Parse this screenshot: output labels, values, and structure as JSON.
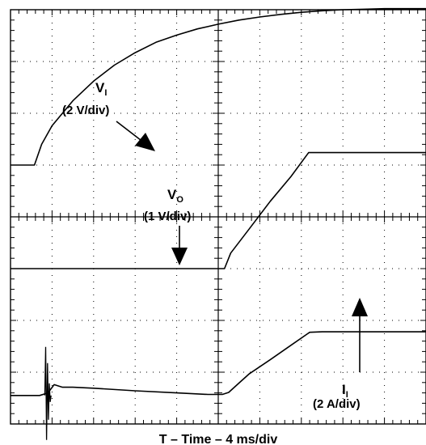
{
  "chart_data": {
    "type": "line",
    "title": "",
    "xlabel": "T – Time – 4 ms/div",
    "x_unit": "ms",
    "x_per_div": 4,
    "divisions": {
      "x": 10,
      "y": 8
    },
    "xlim": [
      0,
      40
    ],
    "grid": true,
    "series": [
      {
        "name": "VI",
        "sub": "I",
        "scale_label": "(2 V/div)",
        "scale_per_div": 2,
        "unit": "V",
        "zero_div": 2.05,
        "x": [
          0,
          2.3,
          3,
          4,
          6,
          8,
          10,
          12,
          14,
          16,
          18,
          20,
          22,
          24,
          26,
          28,
          30,
          32,
          34,
          36,
          38,
          40
        ],
        "y": [
          0,
          0,
          0.8,
          1.52,
          2.48,
          3.24,
          3.86,
          4.34,
          4.74,
          5.02,
          5.26,
          5.44,
          5.6,
          5.72,
          5.82,
          5.9,
          5.96,
          6.0,
          6.02,
          6.04,
          6.04,
          6.04
        ]
      },
      {
        "name": "VO",
        "sub": "O",
        "scale_label": "(1 V/div)",
        "scale_per_div": 1,
        "unit": "V",
        "zero_div": 2.05,
        "x": [
          0,
          20.6,
          21.2,
          23,
          25,
          27,
          28.7,
          30,
          34,
          40
        ],
        "y": [
          0,
          0,
          0.3,
          0.77,
          1.3,
          1.78,
          2.24,
          2.24,
          2.24,
          2.24
        ]
      },
      {
        "name": "II",
        "sub": "I",
        "scale_label": "(2 A/div)",
        "scale_per_div": 2,
        "unit": "A",
        "zero_div": 2.05,
        "x": [
          0,
          2.8,
          3.6,
          4.2,
          5,
          6,
          8,
          12,
          16,
          19,
          20.4,
          21,
          22,
          23,
          25,
          27,
          28.8,
          30,
          34,
          40
        ],
        "y": [
          0,
          0,
          0.1,
          0.42,
          0.32,
          0.32,
          0.28,
          0.18,
          0.1,
          0.04,
          0.04,
          0.12,
          0.48,
          0.84,
          1.38,
          1.94,
          2.44,
          2.46,
          2.46,
          2.46
        ]
      }
    ]
  }
}
